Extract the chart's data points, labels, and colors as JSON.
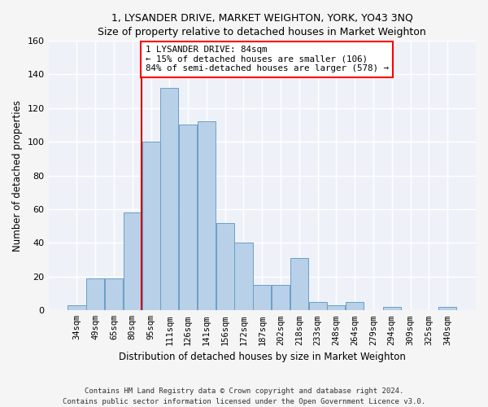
{
  "title": "1, LYSANDER DRIVE, MARKET WEIGHTON, YORK, YO43 3NQ",
  "subtitle": "Size of property relative to detached houses in Market Weighton",
  "xlabel": "Distribution of detached houses by size in Market Weighton",
  "ylabel": "Number of detached properties",
  "bar_color": "#b8d0e8",
  "bar_edge_color": "#6aa0c8",
  "background_color": "#eef2f8",
  "fig_background": "#f5f5f5",
  "grid_color": "#ffffff",
  "categories": [
    "34sqm",
    "49sqm",
    "65sqm",
    "80sqm",
    "95sqm",
    "111sqm",
    "126sqm",
    "141sqm",
    "156sqm",
    "172sqm",
    "187sqm",
    "202sqm",
    "218sqm",
    "233sqm",
    "248sqm",
    "264sqm",
    "279sqm",
    "294sqm",
    "309sqm",
    "325sqm",
    "340sqm"
  ],
  "values": [
    3,
    19,
    19,
    58,
    100,
    132,
    110,
    112,
    52,
    40,
    15,
    15,
    31,
    5,
    3,
    5,
    0,
    2,
    0,
    0,
    2
  ],
  "annotation_line1": "1 LYSANDER DRIVE: 84sqm",
  "annotation_line2": "← 15% of detached houses are smaller (106)",
  "annotation_line3": "84% of semi-detached houses are larger (578) →",
  "vline_color": "#cc0000",
  "ylim": [
    0,
    160
  ],
  "yticks": [
    0,
    20,
    40,
    60,
    80,
    100,
    120,
    140,
    160
  ],
  "footnote1": "Contains HM Land Registry data © Crown copyright and database right 2024.",
  "footnote2": "Contains public sector information licensed under the Open Government Licence v3.0."
}
